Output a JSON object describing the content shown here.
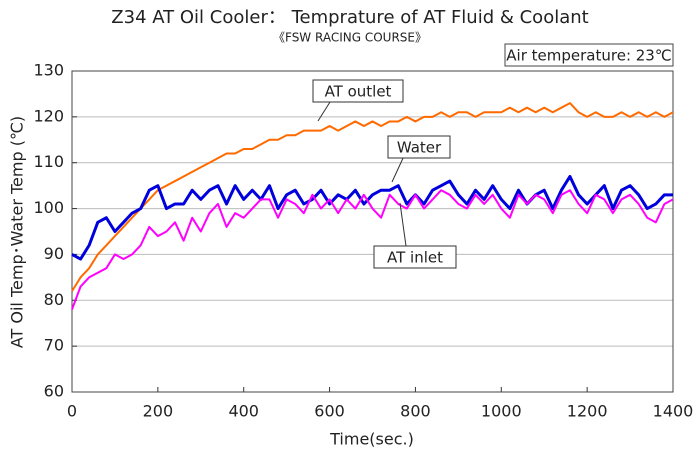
{
  "chart_data": {
    "type": "line",
    "title": "Z34 AT Oil Cooler： Temprature of AT Fluid & Coolant",
    "subtitle": "《FSW RACING COURSE》",
    "annotation": "Air temperature: 23℃",
    "x_label": "Time(sec.)",
    "y_label": "AT Oil Temp･Water Temp (℃)",
    "x": [
      0,
      20,
      40,
      60,
      80,
      100,
      120,
      140,
      160,
      180,
      200,
      220,
      240,
      260,
      280,
      300,
      320,
      340,
      360,
      380,
      400,
      420,
      440,
      460,
      480,
      500,
      520,
      540,
      560,
      580,
      600,
      620,
      640,
      660,
      680,
      700,
      720,
      740,
      760,
      780,
      800,
      820,
      840,
      860,
      880,
      900,
      920,
      940,
      960,
      980,
      1000,
      1020,
      1040,
      1060,
      1080,
      1100,
      1120,
      1140,
      1160,
      1180,
      1200,
      1220,
      1240,
      1260,
      1280,
      1300,
      1320,
      1340,
      1360,
      1380,
      1400
    ],
    "series": [
      {
        "name": "AT outlet",
        "color": "#ff6a00",
        "values": [
          82,
          85,
          87,
          90,
          92,
          94,
          96,
          98,
          100,
          102,
          104,
          105,
          106,
          107,
          108,
          109,
          110,
          111,
          112,
          112,
          113,
          113,
          114,
          115,
          115,
          116,
          116,
          117,
          117,
          117,
          118,
          117,
          118,
          119,
          118,
          119,
          118,
          119,
          119,
          120,
          119,
          120,
          120,
          121,
          120,
          121,
          121,
          120,
          121,
          121,
          121,
          122,
          121,
          122,
          121,
          122,
          121,
          122,
          123,
          121,
          120,
          121,
          120,
          120,
          121,
          120,
          121,
          120,
          121,
          120,
          121
        ]
      },
      {
        "name": "Water",
        "color": "#0000dd",
        "values": [
          90,
          89,
          92,
          97,
          98,
          95,
          97,
          99,
          100,
          104,
          105,
          100,
          101,
          101,
          104,
          102,
          104,
          105,
          101,
          105,
          102,
          104,
          102,
          105,
          100,
          103,
          104,
          101,
          102,
          104,
          101,
          103,
          102,
          104,
          101,
          103,
          104,
          104,
          105,
          101,
          103,
          101,
          104,
          105,
          106,
          103,
          101,
          104,
          102,
          105,
          102,
          100,
          104,
          101,
          103,
          104,
          100,
          104,
          107,
          103,
          101,
          103,
          105,
          100,
          104,
          105,
          103,
          100,
          101,
          103,
          103
        ]
      },
      {
        "name": "AT inlet",
        "color": "#ff00ff",
        "values": [
          78,
          83,
          85,
          86,
          87,
          90,
          89,
          90,
          92,
          96,
          94,
          95,
          97,
          93,
          98,
          95,
          99,
          101,
          96,
          99,
          98,
          100,
          102,
          102,
          98,
          102,
          101,
          99,
          103,
          100,
          102,
          99,
          102,
          100,
          103,
          100,
          98,
          103,
          101,
          100,
          103,
          100,
          102,
          104,
          103,
          101,
          100,
          103,
          101,
          103,
          100,
          98,
          103,
          101,
          103,
          102,
          99,
          103,
          104,
          101,
          99,
          103,
          102,
          99,
          102,
          103,
          101,
          98,
          97,
          101,
          102
        ]
      }
    ],
    "xlim": [
      0,
      1400
    ],
    "xticks": [
      0,
      200,
      400,
      600,
      800,
      1000,
      1200,
      1400
    ],
    "ylim": [
      60,
      130
    ],
    "yticks": [
      60,
      70,
      80,
      90,
      100,
      110,
      120,
      130
    ],
    "grid": true
  }
}
